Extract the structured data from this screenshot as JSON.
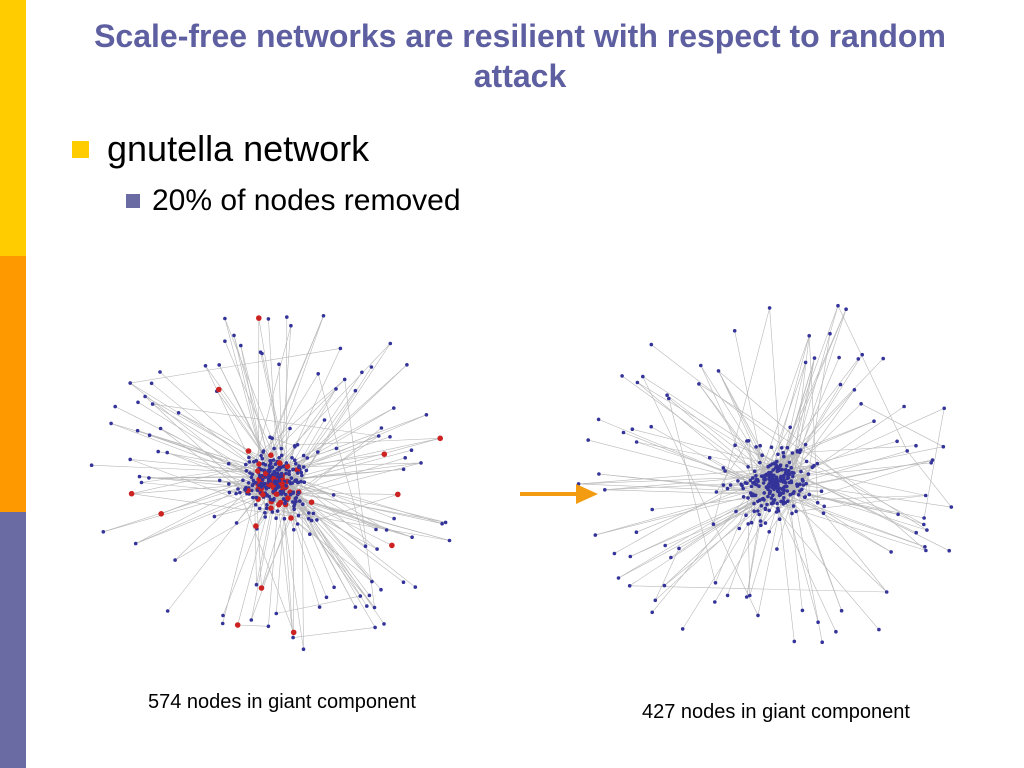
{
  "slide": {
    "title": "Scale-free networks are resilient with respect to random attack",
    "bullets": [
      {
        "text": "gnutella network",
        "level": 1
      },
      {
        "text": "20% of nodes removed",
        "level": 2
      }
    ]
  },
  "graphs": {
    "before": {
      "caption": "574 nodes in giant component"
    },
    "after": {
      "caption": "427 nodes in giant component"
    }
  },
  "colors": {
    "title": "#5d5fa0",
    "bar_top": "#ffcc00",
    "bar_middle": "#ff9900",
    "bar_bottom": "#6b6ba3",
    "bullet_level1": "#ffcc00",
    "bullet_level2": "#6b6ba3",
    "node": "#333399",
    "removed_node": "#cc2222",
    "edge": "#b8b8b8",
    "arrow": "#f39c12"
  }
}
